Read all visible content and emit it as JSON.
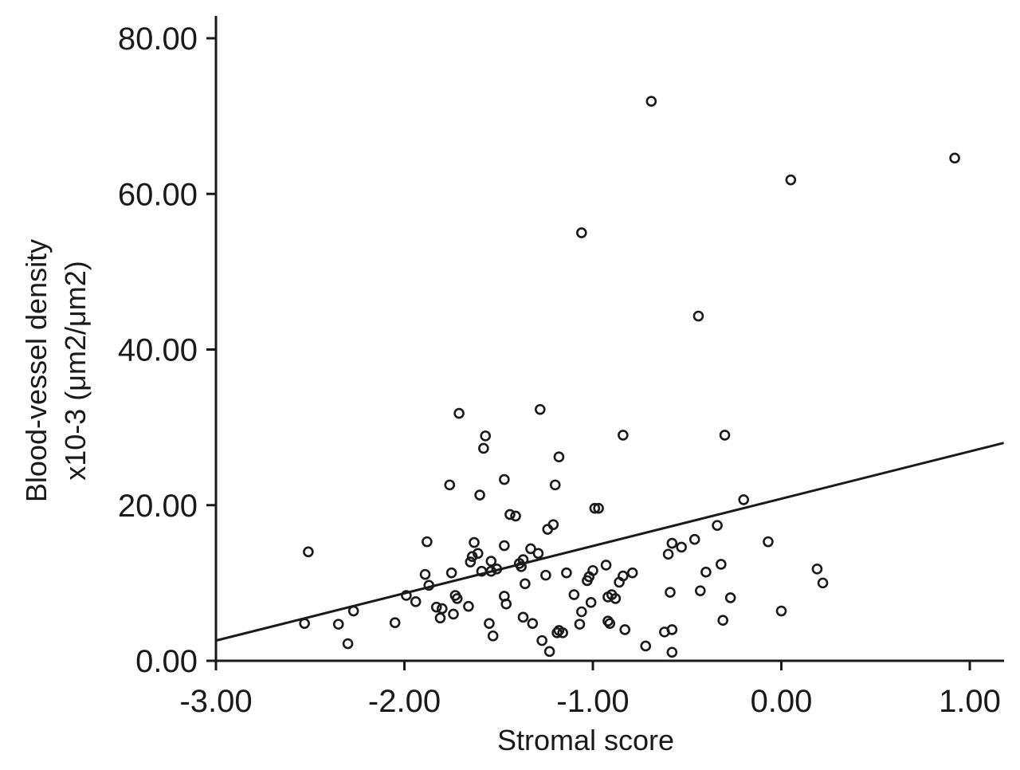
{
  "chart_data": {
    "type": "scatter",
    "title": "",
    "xlabel": "Stromal score",
    "ylabel_line1": "Blood-vessel density",
    "ylabel_line2": "x10-3  (μm2/μm2)",
    "xlim": [
      -3.0,
      1.2
    ],
    "ylim": [
      0,
      82
    ],
    "xticks": [
      -3.0,
      -2.0,
      -1.0,
      0.0,
      1.0
    ],
    "xtick_labels": [
      "-3.00",
      "-2.00",
      "-1.00",
      "0.00",
      "1.00"
    ],
    "yticks": [
      0,
      20,
      40,
      60,
      80
    ],
    "ytick_labels": [
      "0.00",
      "20.00",
      "40.00",
      "60.00",
      "80.00"
    ],
    "fit_line": {
      "x": [
        -3.0,
        1.18
      ],
      "y": [
        2.6,
        28.0
      ]
    },
    "points": [
      [
        -2.53,
        4.8
      ],
      [
        -2.51,
        14.0
      ],
      [
        -2.35,
        4.7
      ],
      [
        -2.3,
        2.2
      ],
      [
        -2.27,
        6.4
      ],
      [
        -2.05,
        4.9
      ],
      [
        -1.99,
        8.4
      ],
      [
        -1.94,
        7.6
      ],
      [
        -1.89,
        11.1
      ],
      [
        -1.88,
        15.3
      ],
      [
        -1.87,
        9.7
      ],
      [
        -1.83,
        6.9
      ],
      [
        -1.81,
        5.5
      ],
      [
        -1.8,
        6.7
      ],
      [
        -1.76,
        22.6
      ],
      [
        -1.75,
        11.3
      ],
      [
        -1.74,
        6.0
      ],
      [
        -1.73,
        8.4
      ],
      [
        -1.72,
        8.0
      ],
      [
        -1.71,
        31.8
      ],
      [
        -1.66,
        7.0
      ],
      [
        -1.65,
        12.7
      ],
      [
        -1.64,
        13.4
      ],
      [
        -1.63,
        15.2
      ],
      [
        -1.61,
        13.8
      ],
      [
        -1.6,
        21.3
      ],
      [
        -1.59,
        11.5
      ],
      [
        -1.58,
        27.3
      ],
      [
        -1.57,
        28.9
      ],
      [
        -1.55,
        4.8
      ],
      [
        -1.54,
        11.5
      ],
      [
        -1.54,
        12.8
      ],
      [
        -1.53,
        3.2
      ],
      [
        -1.51,
        11.8
      ],
      [
        -1.47,
        23.3
      ],
      [
        -1.47,
        14.8
      ],
      [
        -1.47,
        8.3
      ],
      [
        -1.46,
        7.3
      ],
      [
        -1.44,
        18.8
      ],
      [
        -1.41,
        18.6
      ],
      [
        -1.39,
        12.5
      ],
      [
        -1.38,
        12.1
      ],
      [
        -1.37,
        13.0
      ],
      [
        -1.37,
        5.6
      ],
      [
        -1.36,
        9.9
      ],
      [
        -1.33,
        14.4
      ],
      [
        -1.32,
        4.8
      ],
      [
        -1.29,
        13.8
      ],
      [
        -1.28,
        32.3
      ],
      [
        -1.27,
        2.6
      ],
      [
        -1.25,
        11.0
      ],
      [
        -1.24,
        16.9
      ],
      [
        -1.23,
        1.2
      ],
      [
        -1.21,
        17.5
      ],
      [
        -1.2,
        22.6
      ],
      [
        -1.19,
        3.6
      ],
      [
        -1.18,
        26.2
      ],
      [
        -1.18,
        3.9
      ],
      [
        -1.16,
        3.6
      ],
      [
        -1.14,
        11.3
      ],
      [
        -1.1,
        8.5
      ],
      [
        -1.07,
        4.7
      ],
      [
        -1.06,
        55.0
      ],
      [
        -1.06,
        6.3
      ],
      [
        -1.03,
        10.3
      ],
      [
        -1.02,
        10.8
      ],
      [
        -1.01,
        7.5
      ],
      [
        -1.0,
        11.6
      ],
      [
        -0.99,
        19.6
      ],
      [
        -0.97,
        19.6
      ],
      [
        -0.93,
        12.3
      ],
      [
        -0.92,
        8.2
      ],
      [
        -0.92,
        5.1
      ],
      [
        -0.91,
        4.8
      ],
      [
        -0.9,
        8.5
      ],
      [
        -0.88,
        8.0
      ],
      [
        -0.86,
        10.1
      ],
      [
        -0.84,
        29.0
      ],
      [
        -0.84,
        10.9
      ],
      [
        -0.83,
        4.0
      ],
      [
        -0.79,
        11.3
      ],
      [
        -0.72,
        1.9
      ],
      [
        -0.69,
        71.9
      ],
      [
        -0.62,
        3.7
      ],
      [
        -0.6,
        13.7
      ],
      [
        -0.59,
        8.8
      ],
      [
        -0.58,
        15.1
      ],
      [
        -0.58,
        4.0
      ],
      [
        -0.58,
        1.1
      ],
      [
        -0.53,
        14.6
      ],
      [
        -0.46,
        15.6
      ],
      [
        -0.44,
        44.3
      ],
      [
        -0.43,
        9.0
      ],
      [
        -0.4,
        11.4
      ],
      [
        -0.34,
        17.4
      ],
      [
        -0.32,
        12.4
      ],
      [
        -0.31,
        5.2
      ],
      [
        -0.3,
        29.0
      ],
      [
        -0.27,
        8.1
      ],
      [
        -0.2,
        20.7
      ],
      [
        -0.07,
        15.3
      ],
      [
        0.0,
        6.4
      ],
      [
        0.05,
        61.8
      ],
      [
        0.19,
        11.8
      ],
      [
        0.22,
        10.0
      ],
      [
        0.92,
        64.6
      ]
    ]
  }
}
